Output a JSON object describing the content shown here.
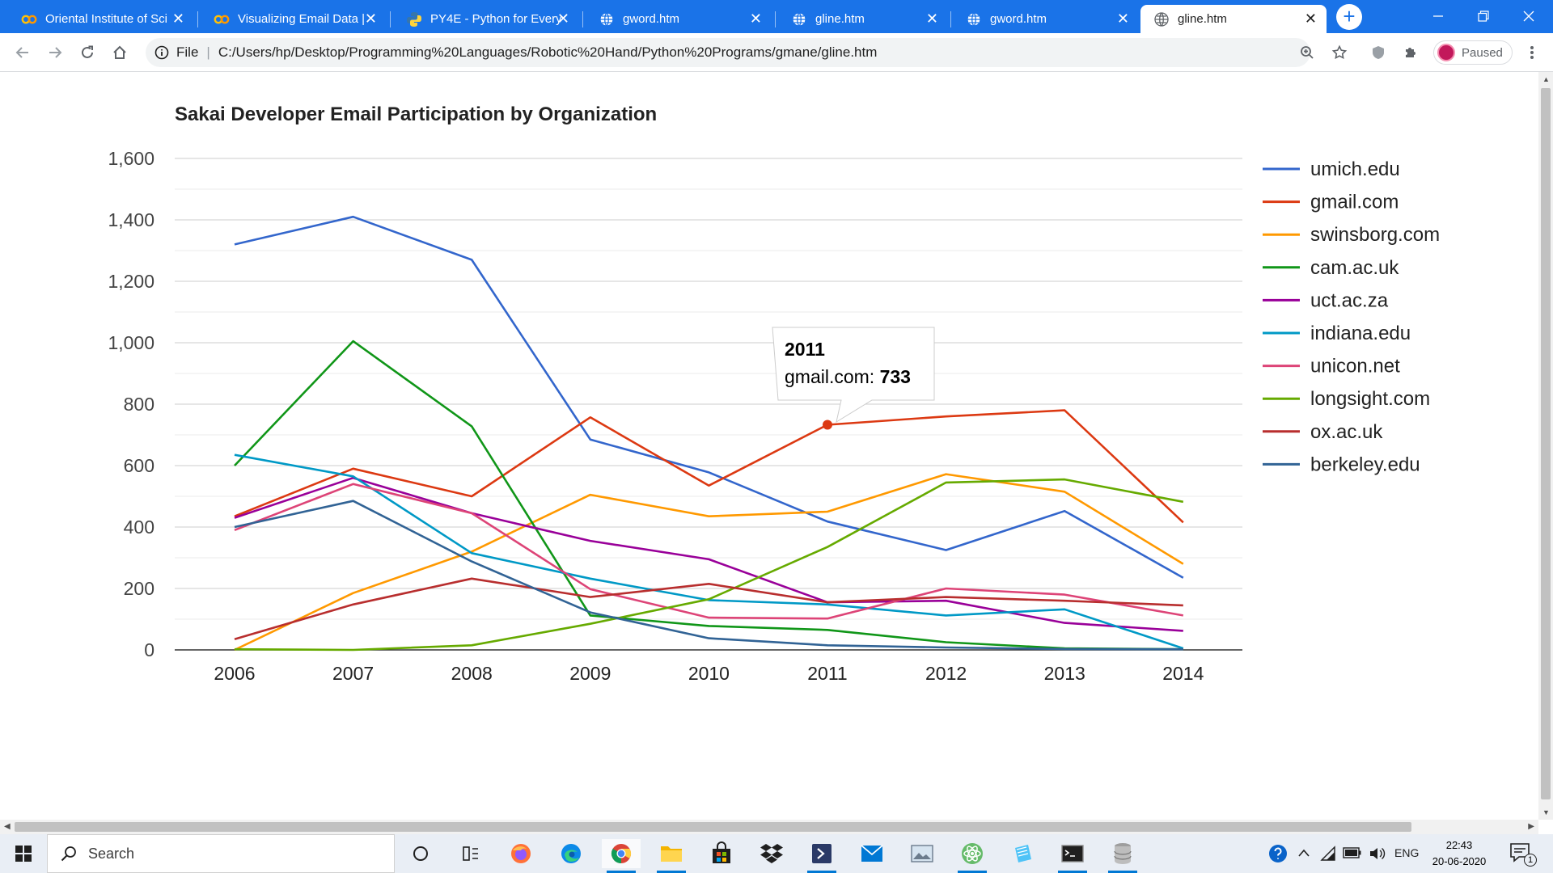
{
  "browser": {
    "tabs": [
      {
        "title": "Oriental Institute of Sci",
        "icon": "colab-icon"
      },
      {
        "title": "Visualizing Email Data |",
        "icon": "colab-icon"
      },
      {
        "title": "PY4E - Python for Every",
        "icon": "python-icon"
      },
      {
        "title": "gword.htm",
        "icon": "globe-icon"
      },
      {
        "title": "gline.htm",
        "icon": "globe-icon"
      },
      {
        "title": "gword.htm",
        "icon": "globe-icon"
      },
      {
        "title": "gline.htm",
        "icon": "globe-icon",
        "active": true
      }
    ],
    "new_tab": "+",
    "address": {
      "scheme": "File",
      "separator": "|",
      "url": "C:/Users/hp/Desktop/Programming%20Languages/Robotic%20Hand/Python%20Programs/gmane/gline.htm"
    },
    "profile_status": "Paused",
    "accent": "#1a73e8"
  },
  "chart_data": {
    "type": "line",
    "title": "Sakai Developer Email Participation by Organization",
    "categories": [
      "2006",
      "2007",
      "2008",
      "2009",
      "2010",
      "2011",
      "2012",
      "2013",
      "2014"
    ],
    "ylim": [
      0,
      1600
    ],
    "yticks": [
      0,
      200,
      400,
      600,
      800,
      1000,
      1200,
      1400,
      1600
    ],
    "ytick_labels": [
      "0",
      "200",
      "400",
      "600",
      "800",
      "1,000",
      "1,200",
      "1,400",
      "1,600"
    ],
    "grid": true,
    "legend": "right",
    "series": [
      {
        "name": "umich.edu",
        "color": "#3366cc",
        "values": [
          1320,
          1410,
          1270,
          685,
          578,
          418,
          325,
          452,
          235
        ]
      },
      {
        "name": "gmail.com",
        "color": "#dc3912",
        "values": [
          435,
          590,
          500,
          757,
          535,
          733,
          760,
          780,
          415
        ]
      },
      {
        "name": "swinsborg.com",
        "color": "#ff9900",
        "values": [
          0,
          185,
          320,
          505,
          435,
          450,
          572,
          515,
          280
        ]
      },
      {
        "name": "cam.ac.uk",
        "color": "#109618",
        "values": [
          600,
          1005,
          728,
          112,
          78,
          65,
          25,
          5,
          2
        ]
      },
      {
        "name": "uct.ac.za",
        "color": "#990099",
        "values": [
          430,
          560,
          445,
          355,
          295,
          155,
          160,
          88,
          62
        ]
      },
      {
        "name": "indiana.edu",
        "color": "#0099c6",
        "values": [
          635,
          565,
          315,
          232,
          162,
          148,
          112,
          132,
          5
        ]
      },
      {
        "name": "unicon.net",
        "color": "#dd4477",
        "values": [
          390,
          540,
          445,
          198,
          105,
          102,
          200,
          180,
          112
        ]
      },
      {
        "name": "longsight.com",
        "color": "#66aa00",
        "values": [
          2,
          0,
          15,
          85,
          165,
          335,
          545,
          555,
          482
        ]
      },
      {
        "name": "ox.ac.uk",
        "color": "#b82e2e",
        "values": [
          35,
          148,
          232,
          172,
          215,
          155,
          172,
          160,
          145
        ]
      },
      {
        "name": "berkeley.edu",
        "color": "#316395",
        "values": [
          400,
          485,
          288,
          122,
          38,
          15,
          8,
          3,
          2
        ]
      }
    ],
    "tooltip": {
      "category": "2011",
      "series": "gmail.com",
      "value": "733"
    }
  },
  "taskbar": {
    "search_label": "Search",
    "apps": [
      "task-view-icon",
      "widgets-icon",
      "firefox-icon",
      "edge-icon",
      "chrome-icon",
      "file-explorer-icon",
      "store-icon",
      "dropbox-icon",
      "powershell-icon",
      "mail-icon",
      "photos-icon",
      "atom-icon",
      "notepad-icon",
      "terminal-icon",
      "database-icon"
    ],
    "tray": {
      "language": "ENG",
      "time": "22:43",
      "date": "20-06-2020",
      "notification_count": "1"
    }
  }
}
